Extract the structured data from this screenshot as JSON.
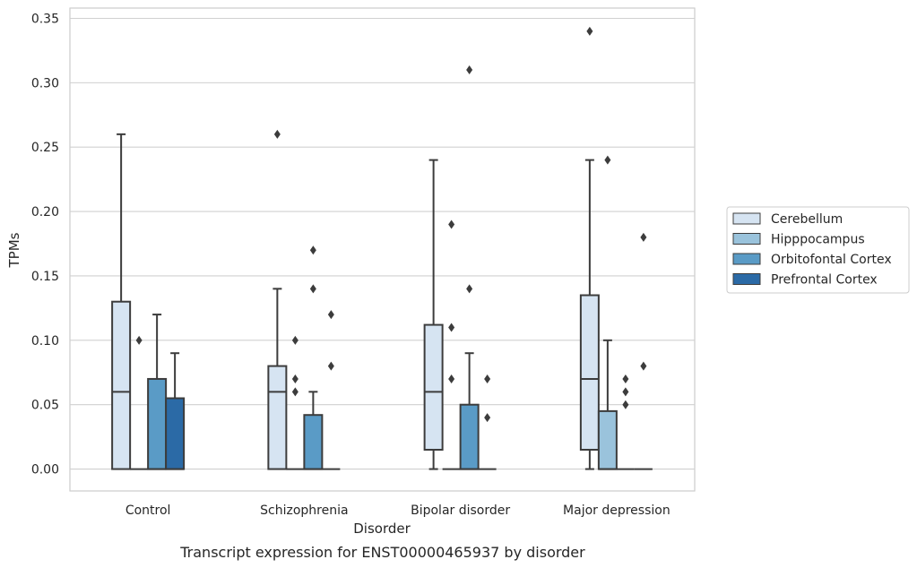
{
  "chart_data": {
    "type": "box",
    "caption": "Transcript expression for ENST00000465937 by disorder",
    "xlabel": "Disorder",
    "ylabel": "TPMs",
    "ylim": [
      -0.017,
      0.358
    ],
    "yticks": [
      0.0,
      0.05,
      0.1,
      0.15,
      0.2,
      0.25,
      0.3,
      0.35
    ],
    "ytick_labels": [
      "0.00",
      "0.05",
      "0.10",
      "0.15",
      "0.20",
      "0.25",
      "0.30",
      "0.35"
    ],
    "grid": true,
    "legend_position": "right",
    "categories": [
      "Control",
      "Schizophrenia",
      "Bipolar disorder",
      "Major depression"
    ],
    "series": [
      {
        "name": "Cerebellum",
        "color": "#d6e4f2",
        "boxes": [
          {
            "q1": 0.0,
            "median": 0.06,
            "q3": 0.13,
            "whisker_low": 0.0,
            "whisker_high": 0.26,
            "outliers": []
          },
          {
            "q1": 0.0,
            "median": 0.06,
            "q3": 0.08,
            "whisker_low": 0.0,
            "whisker_high": 0.14,
            "outliers": [
              0.26
            ]
          },
          {
            "q1": 0.015,
            "median": 0.06,
            "q3": 0.112,
            "whisker_low": 0.0,
            "whisker_high": 0.24,
            "outliers": []
          },
          {
            "q1": 0.015,
            "median": 0.07,
            "q3": 0.135,
            "whisker_low": 0.0,
            "whisker_high": 0.24,
            "outliers": [
              0.34
            ]
          }
        ]
      },
      {
        "name": "Hipppocampus",
        "color": "#9ac3dc",
        "boxes": [
          {
            "q1": 0.0,
            "median": 0.0,
            "q3": 0.0,
            "whisker_low": 0.0,
            "whisker_high": 0.0,
            "outliers": [
              0.1
            ]
          },
          {
            "q1": 0.0,
            "median": 0.0,
            "q3": 0.0,
            "whisker_low": 0.0,
            "whisker_high": 0.0,
            "outliers": [
              0.1,
              0.07,
              0.06
            ]
          },
          {
            "q1": 0.0,
            "median": 0.0,
            "q3": 0.0,
            "whisker_low": 0.0,
            "whisker_high": 0.0,
            "outliers": [
              0.19,
              0.11,
              0.07
            ]
          },
          {
            "q1": 0.0,
            "median": 0.0,
            "q3": 0.045,
            "whisker_low": 0.0,
            "whisker_high": 0.1,
            "outliers": [
              0.24
            ]
          }
        ]
      },
      {
        "name": "Orbitofontal Cortex",
        "color": "#5a9bc6",
        "boxes": [
          {
            "q1": 0.0,
            "median": 0.0,
            "q3": 0.07,
            "whisker_low": 0.0,
            "whisker_high": 0.12,
            "outliers": []
          },
          {
            "q1": 0.0,
            "median": 0.0,
            "q3": 0.042,
            "whisker_low": 0.0,
            "whisker_high": 0.06,
            "outliers": [
              0.17,
              0.14
            ]
          },
          {
            "q1": 0.0,
            "median": 0.0,
            "q3": 0.05,
            "whisker_low": 0.0,
            "whisker_high": 0.09,
            "outliers": [
              0.31,
              0.14
            ]
          },
          {
            "q1": 0.0,
            "median": 0.0,
            "q3": 0.0,
            "whisker_low": 0.0,
            "whisker_high": 0.0,
            "outliers": [
              0.07,
              0.06,
              0.05
            ]
          }
        ]
      },
      {
        "name": "Prefrontal Cortex",
        "color": "#2b6aa6",
        "boxes": [
          {
            "q1": 0.0,
            "median": 0.0,
            "q3": 0.055,
            "whisker_low": 0.0,
            "whisker_high": 0.09,
            "outliers": []
          },
          {
            "q1": 0.0,
            "median": 0.0,
            "q3": 0.0,
            "whisker_low": 0.0,
            "whisker_high": 0.0,
            "outliers": [
              0.12,
              0.08
            ]
          },
          {
            "q1": 0.0,
            "median": 0.0,
            "q3": 0.0,
            "whisker_low": 0.0,
            "whisker_high": 0.0,
            "outliers": [
              0.07,
              0.04
            ]
          },
          {
            "q1": 0.0,
            "median": 0.0,
            "q3": 0.0,
            "whisker_low": 0.0,
            "whisker_high": 0.0,
            "outliers": [
              0.18,
              0.08
            ]
          }
        ]
      }
    ]
  }
}
